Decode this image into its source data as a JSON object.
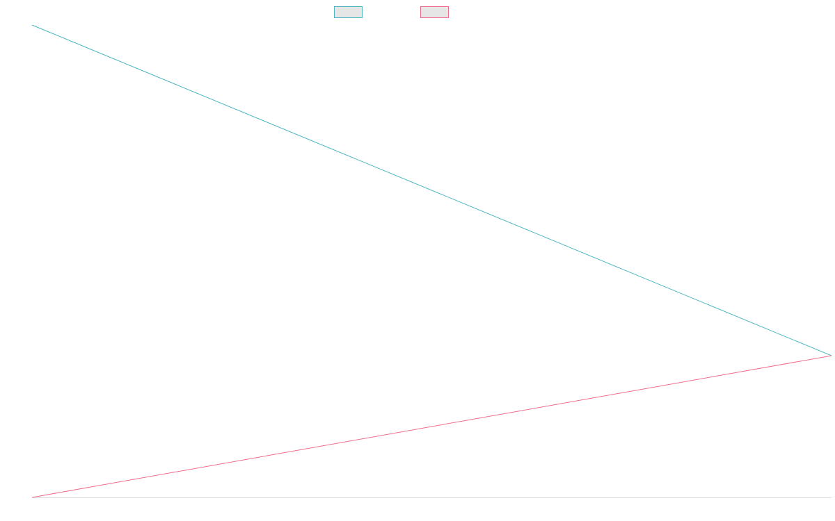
{
  "chart_data": {
    "type": "line",
    "title": "",
    "xlabel": "",
    "ylabel": "",
    "legend_position": "top-center",
    "grid": false,
    "x": [
      0,
      1
    ],
    "series": [
      {
        "color": "#4bb6c2",
        "values": [
          1,
          0.3
        ]
      },
      {
        "color": "#f06b8a",
        "values": [
          0,
          0.3
        ]
      }
    ],
    "xlim": [
      0,
      1
    ],
    "ylim": [
      0,
      1
    ],
    "axis_color": "#dcdcdc"
  }
}
